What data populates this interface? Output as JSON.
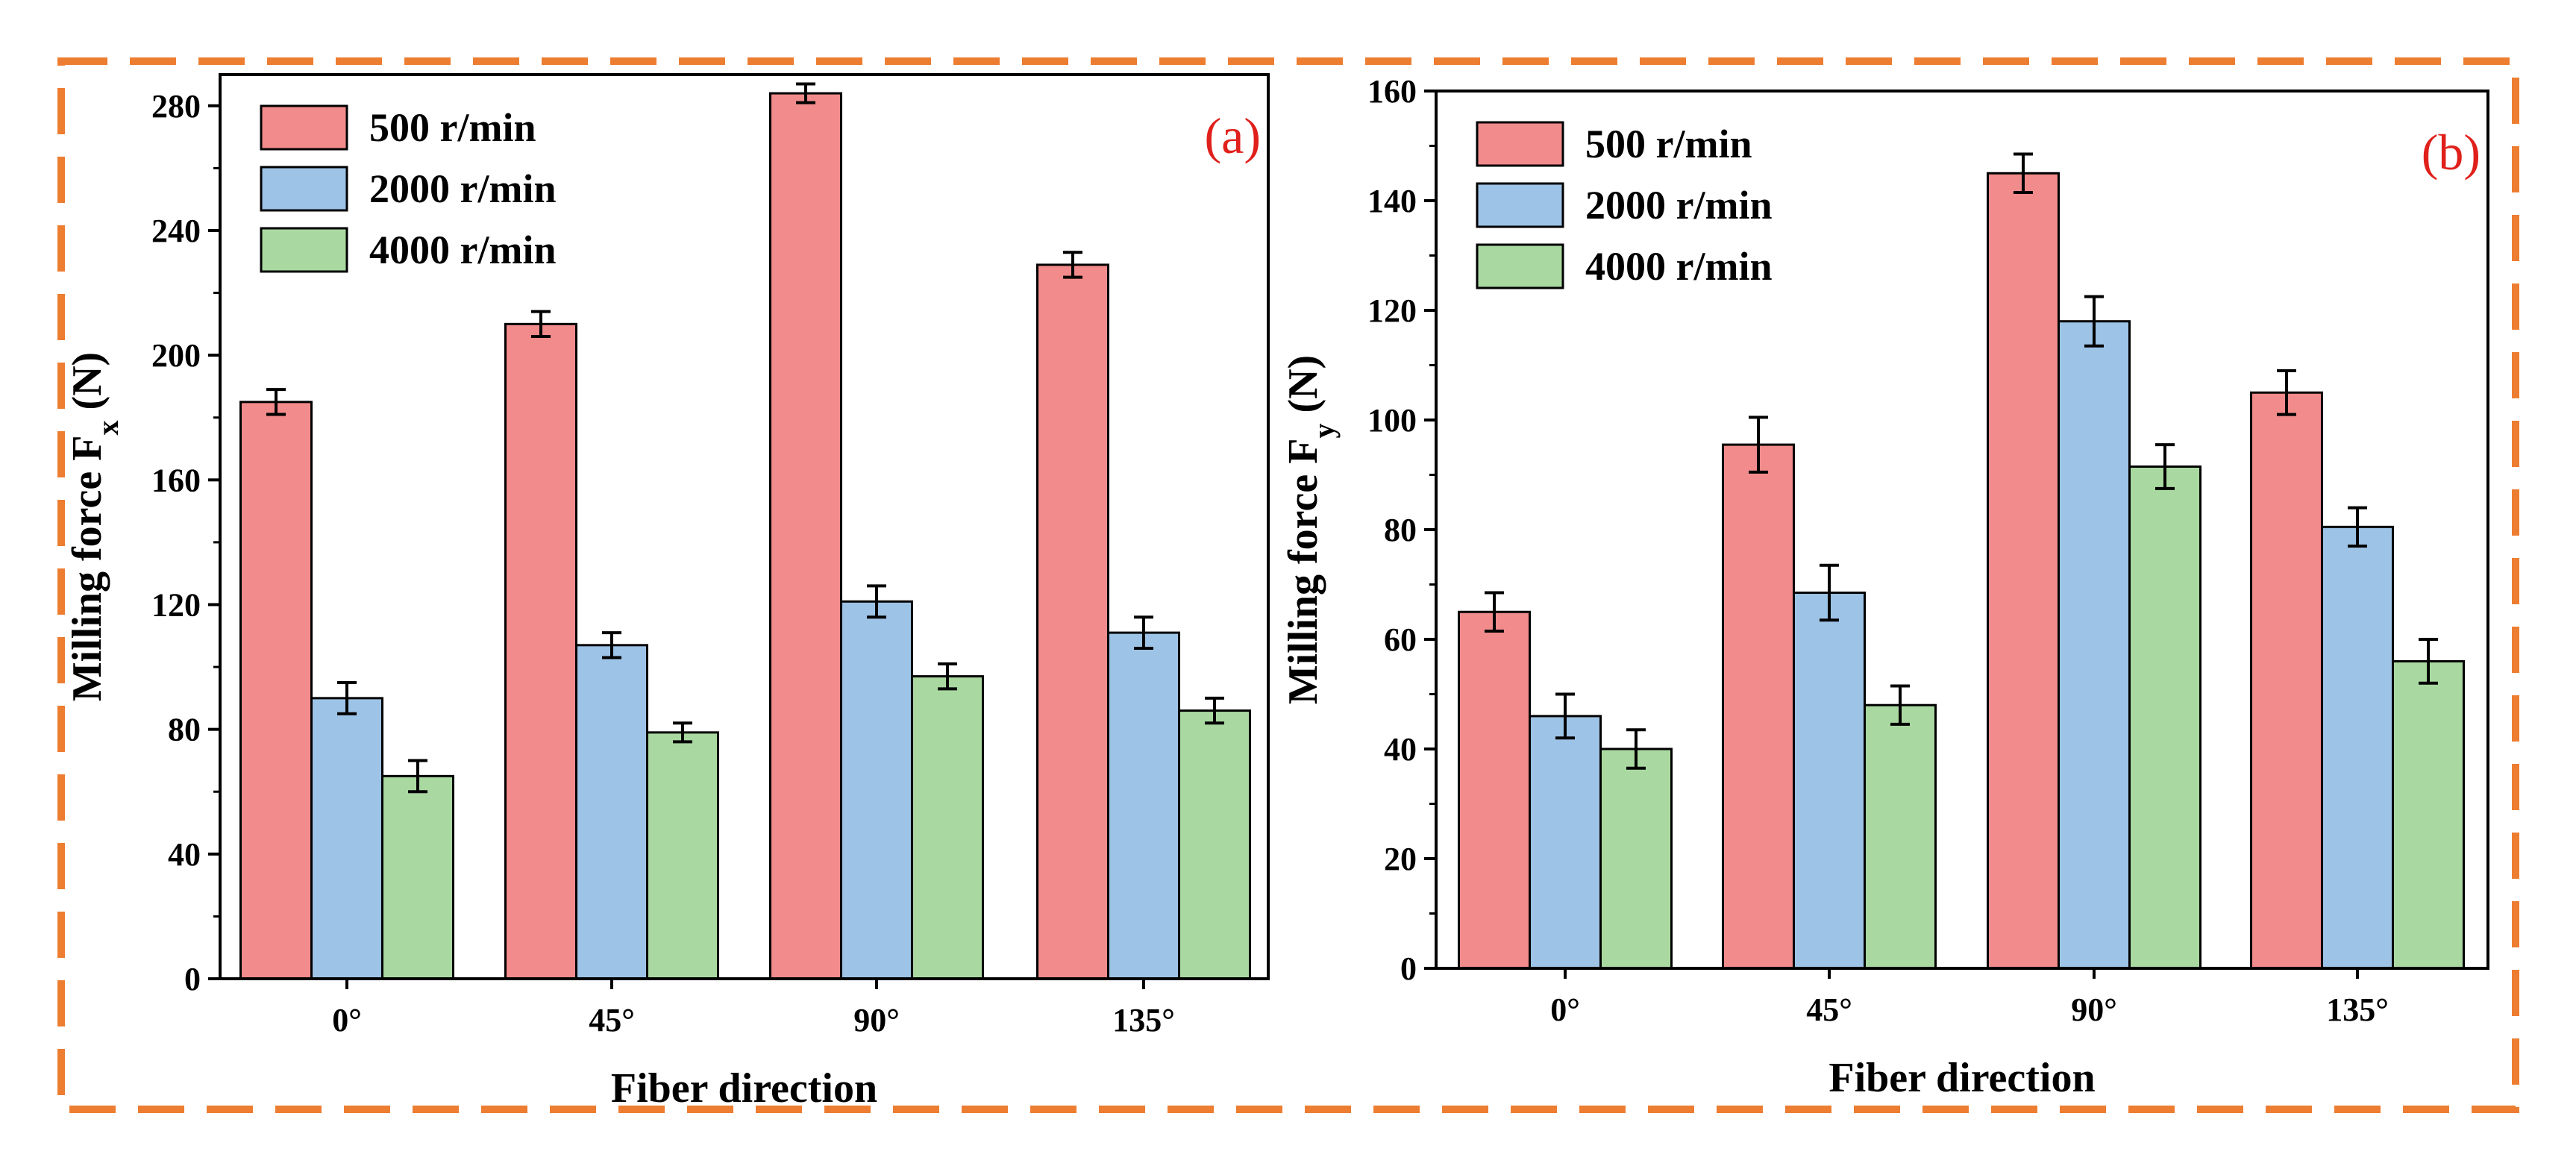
{
  "colors": {
    "frame": "#ed7d31",
    "series": [
      "#f28b8b",
      "#9dc3e6",
      "#a9d9a0"
    ],
    "panel_label": "#e0201b"
  },
  "chart_data": [
    {
      "type": "bar",
      "panel_label": "(a)",
      "categories": [
        "0°",
        "45°",
        "90°",
        "135°"
      ],
      "series": [
        {
          "name": "500 r/min",
          "values": [
            185,
            210,
            284,
            229
          ],
          "errors": [
            4,
            4,
            3,
            4
          ]
        },
        {
          "name": "2000 r/min",
          "values": [
            90,
            107,
            121,
            111
          ],
          "errors": [
            5,
            4,
            5,
            5
          ]
        },
        {
          "name": "4000 r/min",
          "values": [
            65,
            79,
            97,
            86
          ],
          "errors": [
            5,
            3,
            4,
            4
          ]
        }
      ],
      "xlabel": "Fiber direction",
      "ylabel_main": "Milling force F",
      "ylabel_sub": "x",
      "ylabel_unit": " (N)",
      "ylim": [
        0,
        290
      ],
      "yticks": [
        "0",
        "40",
        "80",
        "120",
        "160",
        "200",
        "240",
        "280"
      ],
      "ytick_values": [
        0,
        40,
        80,
        120,
        160,
        200,
        240,
        280
      ],
      "legend_position": "top-left",
      "grid": false
    },
    {
      "type": "bar",
      "panel_label": "(b)",
      "categories": [
        "0°",
        "45°",
        "90°",
        "135°"
      ],
      "series": [
        {
          "name": "500 r/min",
          "values": [
            65,
            95.5,
            145,
            105
          ],
          "errors": [
            3.5,
            5,
            3.5,
            4
          ]
        },
        {
          "name": "2000 r/min",
          "values": [
            46,
            68.5,
            118,
            80.5
          ],
          "errors": [
            4,
            5,
            4.5,
            3.5
          ]
        },
        {
          "name": "4000 r/min",
          "values": [
            40,
            48,
            91.5,
            56
          ],
          "errors": [
            3.5,
            3.5,
            4,
            4
          ]
        }
      ],
      "xlabel": "Fiber direction",
      "ylabel_main": "Milling force F",
      "ylabel_sub": "y",
      "ylabel_unit": " (N)",
      "ylim": [
        0,
        160
      ],
      "yticks": [
        "0",
        "20",
        "40",
        "60",
        "80",
        "100",
        "120",
        "140",
        "160"
      ],
      "ytick_values": [
        0,
        20,
        40,
        60,
        80,
        100,
        120,
        140,
        160
      ],
      "legend_position": "top-left",
      "grid": false
    }
  ]
}
